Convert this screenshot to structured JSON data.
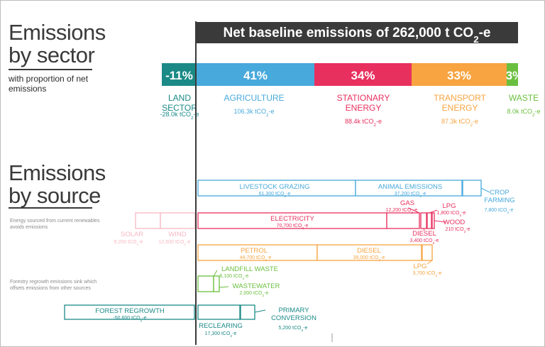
{
  "headings": {
    "by_sector_line1": "Emissions",
    "by_sector_line2": "by sector",
    "sector_subtitle": "with proportion of net emissions",
    "by_source_line1": "Emissions",
    "by_source_line2": "by source",
    "energy_note": "Energy sourced from current renewables avoids emissions",
    "forestry_note": "Forestry regrowth emissions sink which offsets emissions from other sources"
  },
  "chart_data": {
    "type": "bar",
    "title": "Net baseline emissions of 262,000 t CO2-e",
    "unit": "tCO2-e",
    "colors": {
      "land": "#1b8a87",
      "agriculture": "#47a9dc",
      "stationary": "#e8305f",
      "transport": "#f7a441",
      "waste": "#6bbf3e",
      "renewables": "#f7b8c4",
      "title_bg": "#3a3a3a"
    },
    "sectors": [
      {
        "key": "land",
        "label": "LAND SECTOR",
        "pct": "-11%",
        "value": "-28.0k tCO2-e"
      },
      {
        "key": "agriculture",
        "label": "AGRICULTURE",
        "pct": "41%",
        "value": "106.3k tCO2-e"
      },
      {
        "key": "stationary",
        "label": "STATIONARY ENERGY",
        "pct": "34%",
        "value": "88.4k tCO2-e"
      },
      {
        "key": "transport",
        "label": "TRANSPORT ENERGY",
        "pct": "33%",
        "value": "87.3k tCO2-e"
      },
      {
        "key": "waste",
        "label": "WASTE",
        "pct": "3%",
        "value": "8.0k tCO2-e"
      }
    ],
    "sources": [
      {
        "key": "agriculture",
        "label": "LIVESTOCK GRAZING",
        "value": "61,300 tCO2-e"
      },
      {
        "key": "agriculture",
        "label": "ANIMAL EMISSIONS",
        "value": "37,200 tCO2-e"
      },
      {
        "key": "agriculture",
        "label": "CROP FARMING",
        "value": "7,800 tCO2-e"
      },
      {
        "key": "stationary",
        "label": "ELECTRICITY",
        "value": "70,700 tCO2-e"
      },
      {
        "key": "stationary",
        "label": "GAS",
        "value": "12,200 tCO2-e"
      },
      {
        "key": "stationary",
        "label": "DIESEL",
        "value": "3,400 tCO2-e"
      },
      {
        "key": "stationary",
        "label": "LPG",
        "value": "1,800 tCO2-e"
      },
      {
        "key": "stationary",
        "label": "WOOD",
        "value": "210 tCO2-e"
      },
      {
        "key": "renewables",
        "label": "SOLAR",
        "value": "9,200 tCO2-e"
      },
      {
        "key": "renewables",
        "label": "WIND",
        "value": "12,500 tCO2-e"
      },
      {
        "key": "transport",
        "label": "PETROL",
        "value": "44,700 tCO2-e"
      },
      {
        "key": "transport",
        "label": "DIESEL",
        "value": "39,000 tCO2-e"
      },
      {
        "key": "transport",
        "label": "LPG",
        "value": "3,700 tCO2-e"
      },
      {
        "key": "waste",
        "label": "LANDFILL WASTE",
        "value": "6,100 tCO2-e"
      },
      {
        "key": "waste",
        "label": "WASTEWATER",
        "value": "2,000 tCO2-e"
      },
      {
        "key": "land",
        "label": "FOREST REGROWTH",
        "value": "-50,600 tCO2-e"
      },
      {
        "key": "land",
        "label": "RECLEARING",
        "value": "17,300 tCO2-e"
      },
      {
        "key": "land",
        "label": "PRIMARY CONVERSION",
        "value": "5,200 tCO2-e"
      }
    ]
  }
}
